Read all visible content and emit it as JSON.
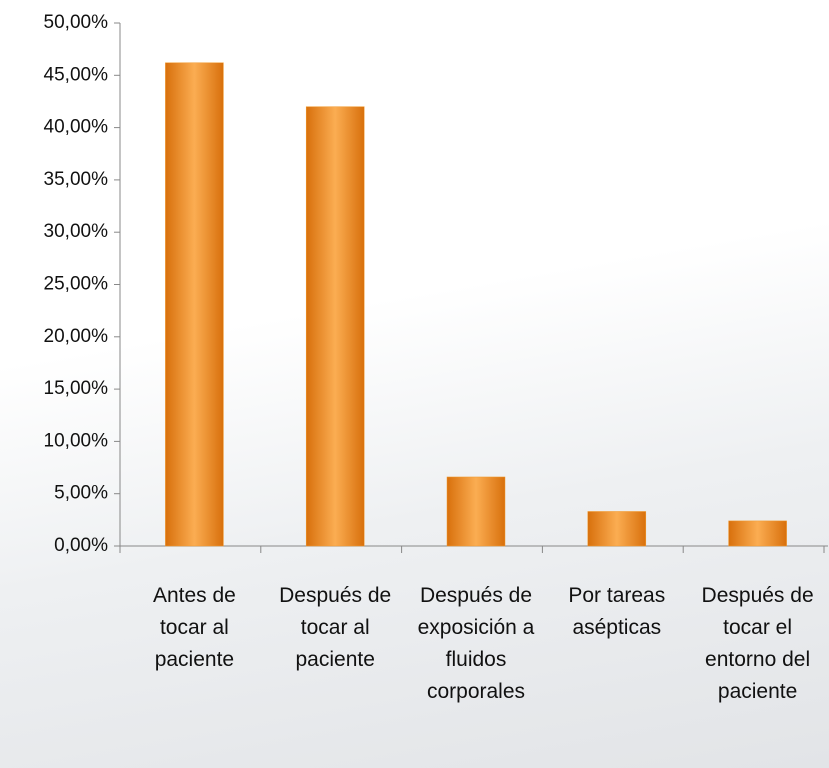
{
  "chart_data": {
    "type": "bar",
    "categories": [
      "Antes de tocar al paciente",
      "Después de tocar al paciente",
      "Después de exposición a fluidos corporales",
      "Por tareas asépticas",
      "Después de tocar el entorno del paciente"
    ],
    "values": [
      46.2,
      42.0,
      6.6,
      3.3,
      2.4
    ],
    "color": "#f29a2e",
    "ylim": [
      0,
      50
    ],
    "yticks": [
      {
        "value": 0,
        "label": "0,00%"
      },
      {
        "value": 5,
        "label": "5,00%"
      },
      {
        "value": 10,
        "label": "10,00%"
      },
      {
        "value": 15,
        "label": "15,00%"
      },
      {
        "value": 20,
        "label": "20,00%"
      },
      {
        "value": 25,
        "label": "25,00%"
      },
      {
        "value": 30,
        "label": "30,00%"
      },
      {
        "value": 35,
        "label": "35,00%"
      },
      {
        "value": 40,
        "label": "40,00%"
      },
      {
        "value": 45,
        "label": "45,00%"
      },
      {
        "value": 50,
        "label": "50,00%"
      }
    ]
  }
}
